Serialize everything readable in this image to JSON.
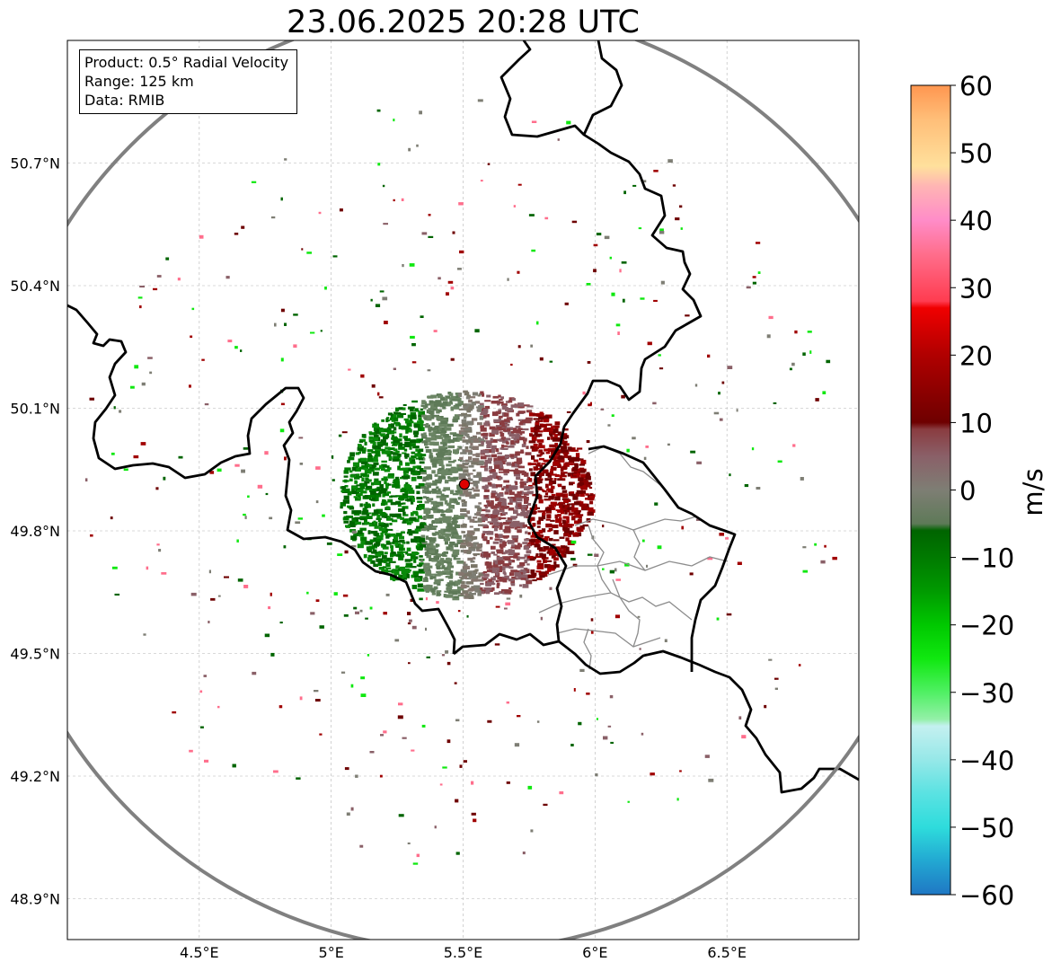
{
  "title": "23.06.2025 20:28 UTC",
  "info_box": {
    "product": "Product: 0.5° Radial Velocity",
    "range": "Range: 125 km",
    "data": "Data: RMIB"
  },
  "map": {
    "lon_range": [
      4.0,
      7.0
    ],
    "lat_range": [
      48.8,
      51.0
    ],
    "lon_ticks": [
      {
        "value": 4.5,
        "label": "4.5°E"
      },
      {
        "value": 5.0,
        "label": "5°E"
      },
      {
        "value": 5.5,
        "label": "5.5°E"
      },
      {
        "value": 6.0,
        "label": "6°E"
      },
      {
        "value": 6.5,
        "label": "6.5°E"
      }
    ],
    "lat_ticks": [
      {
        "value": 50.7,
        "label": "50.7°N"
      },
      {
        "value": 50.4,
        "label": "50.4°N"
      },
      {
        "value": 50.1,
        "label": "50.1°N"
      },
      {
        "value": 49.8,
        "label": "49.8°N"
      },
      {
        "value": 49.5,
        "label": "49.5°N"
      },
      {
        "value": 49.2,
        "label": "49.2°N"
      },
      {
        "value": 48.9,
        "label": "48.9°N"
      }
    ],
    "radar_site": {
      "lon": 5.505,
      "lat": 49.914
    },
    "grid": true,
    "range_ring_km": 125
  },
  "colorbar": {
    "unit": "m/s",
    "min": -60,
    "max": 60,
    "ticks": [
      {
        "value": 60,
        "label": "60"
      },
      {
        "value": 50,
        "label": "50"
      },
      {
        "value": 40,
        "label": "40"
      },
      {
        "value": 30,
        "label": "30"
      },
      {
        "value": 20,
        "label": "20"
      },
      {
        "value": 10,
        "label": "10"
      },
      {
        "value": 0,
        "label": "0"
      },
      {
        "value": -10,
        "label": "−10"
      },
      {
        "value": -20,
        "label": "−20"
      },
      {
        "value": -30,
        "label": "−30"
      },
      {
        "value": -40,
        "label": "−40"
      },
      {
        "value": -50,
        "label": "−50"
      },
      {
        "value": -60,
        "label": "−60"
      }
    ],
    "stops": [
      {
        "value": -60,
        "color": "#1f77c4"
      },
      {
        "value": -55,
        "color": "#22a8d2"
      },
      {
        "value": -50,
        "color": "#2edcdc"
      },
      {
        "value": -45,
        "color": "#5ae2e2"
      },
      {
        "value": -40,
        "color": "#96e8e8"
      },
      {
        "value": -35,
        "color": "#c4f0f0"
      },
      {
        "value": -34,
        "color": "#94f0a8"
      },
      {
        "value": -30,
        "color": "#50f064"
      },
      {
        "value": -25,
        "color": "#10e810"
      },
      {
        "value": -20,
        "color": "#00c800"
      },
      {
        "value": -15,
        "color": "#009a00"
      },
      {
        "value": -10,
        "color": "#007a00"
      },
      {
        "value": -6,
        "color": "#006400"
      },
      {
        "value": -5,
        "color": "#5e7a58"
      },
      {
        "value": 0,
        "color": "#7e7e74"
      },
      {
        "value": 5,
        "color": "#8a6068"
      },
      {
        "value": 9,
        "color": "#8a3c40"
      },
      {
        "value": 10,
        "color": "#6e0000"
      },
      {
        "value": 20,
        "color": "#b00000"
      },
      {
        "value": 27,
        "color": "#f00000"
      },
      {
        "value": 28,
        "color": "#ff3c50"
      },
      {
        "value": 35,
        "color": "#ff6e8c"
      },
      {
        "value": 40,
        "color": "#ff8cc8"
      },
      {
        "value": 45,
        "color": "#ffb4b4"
      },
      {
        "value": 48,
        "color": "#ffe09c"
      },
      {
        "value": 55,
        "color": "#ffbe78"
      },
      {
        "value": 60,
        "color": "#ff9650"
      }
    ]
  },
  "colors": {
    "range_ring": "#808080",
    "border": "#000000",
    "admin": "#8c8c8c",
    "site_marker": "#e00000"
  }
}
